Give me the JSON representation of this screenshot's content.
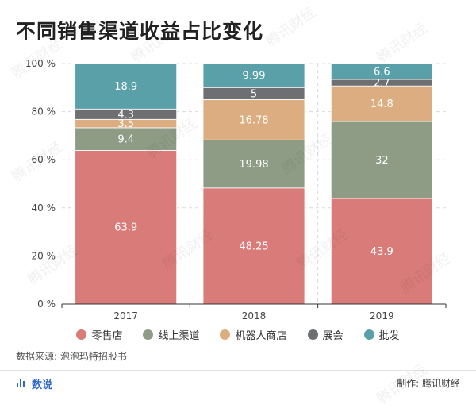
{
  "title": "不同销售渠道收益占比变化",
  "watermark_text": "腾讯财经",
  "source": "数据来源: 泡泡玛特招股书",
  "footer": {
    "left_label": "数说",
    "left_icon": "bar-chart-icon",
    "right_label": "制作: 腾讯财经"
  },
  "colors": {
    "accent": "#2f66c9"
  },
  "chart_data": {
    "type": "bar",
    "stacked": true,
    "categories": [
      "2017",
      "2018",
      "2019"
    ],
    "y_ticks": [
      "0 %",
      "20 %",
      "40 %",
      "60 %",
      "80 %",
      "100 %"
    ],
    "ylim": [
      0,
      100
    ],
    "grid": true,
    "legend_position": "bottom",
    "series": [
      {
        "name": "零售店",
        "color": "#d97b78",
        "values": [
          63.9,
          48.25,
          43.9
        ]
      },
      {
        "name": "线上渠道",
        "color": "#8e9c86",
        "values": [
          9.4,
          19.98,
          32
        ]
      },
      {
        "name": "机器人商店",
        "color": "#dcad80",
        "values": [
          3.5,
          16.78,
          14.8
        ]
      },
      {
        "name": "展会",
        "color": "#6d6f73",
        "values": [
          4.3,
          5,
          2.7
        ]
      },
      {
        "name": "批发",
        "color": "#5aa0a8",
        "values": [
          18.9,
          9.99,
          6.6
        ]
      }
    ]
  }
}
